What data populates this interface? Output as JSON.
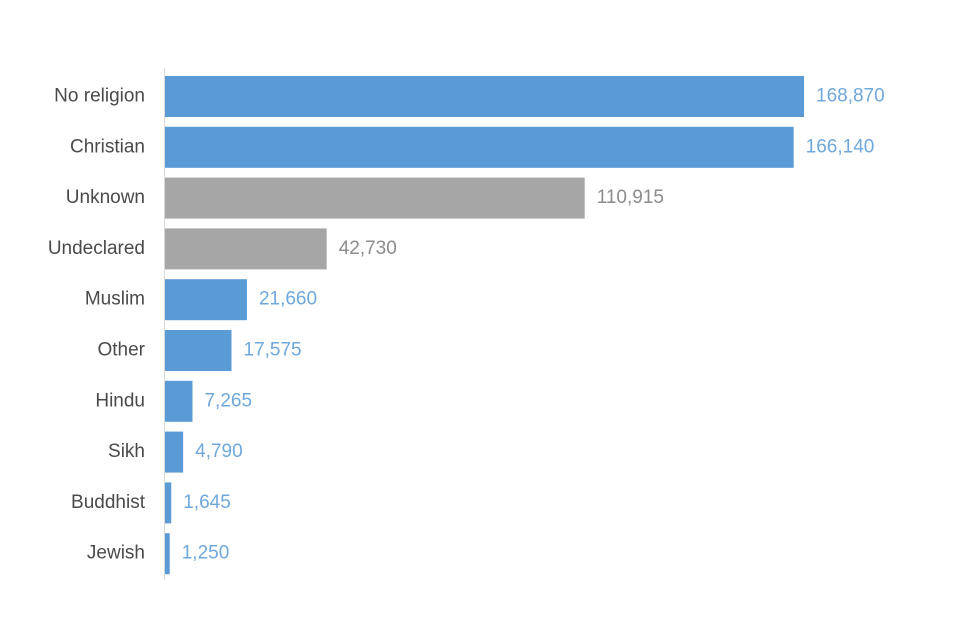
{
  "chart_data": {
    "type": "bar",
    "orientation": "horizontal",
    "title": "",
    "xlabel": "",
    "ylabel": "",
    "grid": false,
    "categories": [
      "No religion",
      "Christian",
      "Unknown",
      "Undeclared",
      "Muslim",
      "Other",
      "Hindu",
      "Sikh",
      "Buddhist",
      "Jewish"
    ],
    "values": [
      168870,
      166140,
      110915,
      42730,
      21660,
      17575,
      7265,
      4790,
      1645,
      1250
    ],
    "value_labels": [
      "168,870",
      "166,140",
      "110,915",
      "42,730",
      "21,660",
      "17,575",
      "7,265",
      "4,790",
      "1,645",
      "1,250"
    ],
    "bar_colors": [
      "#5b9bd5",
      "#5b9bd5",
      "#a6a6a6",
      "#a6a6a6",
      "#5b9bd5",
      "#5b9bd5",
      "#5b9bd5",
      "#5b9bd5",
      "#5b9bd5",
      "#5b9bd5"
    ],
    "label_colors": [
      "#6fa8dc",
      "#6fa8dc",
      "#8c8c8c",
      "#8c8c8c",
      "#6fa8dc",
      "#6fa8dc",
      "#6fa8dc",
      "#6fa8dc",
      "#6fa8dc",
      "#6fa8dc"
    ],
    "xlim": [
      0,
      168870
    ]
  },
  "colors": {
    "axis": "#d9d9d9",
    "category_text": "#4a4a4a"
  }
}
